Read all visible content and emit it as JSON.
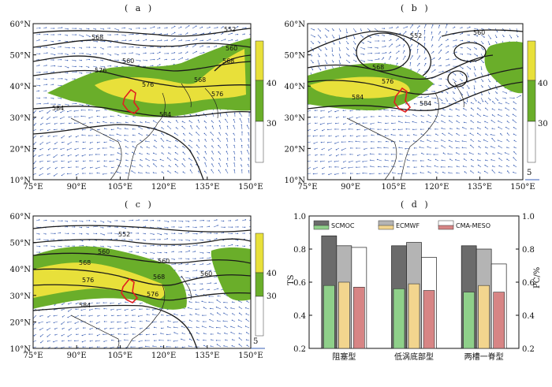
{
  "panels": {
    "a": {
      "label": "( a )",
      "contours": [
        "568",
        "560",
        "576",
        "576",
        "584",
        "568",
        "552",
        "568",
        "560",
        "576",
        "584"
      ],
      "legend_ticks": [
        "40",
        "30"
      ]
    },
    "b": {
      "label": "( b )",
      "contours": [
        "568",
        "576",
        "584",
        "552",
        "560",
        "584"
      ],
      "legend_ticks": [
        "40",
        "30"
      ],
      "vector_ref": "5"
    },
    "c": {
      "label": "( c )",
      "contours": [
        "552",
        "560",
        "568",
        "560",
        "576",
        "568",
        "576",
        "560",
        "584"
      ],
      "legend_ticks": [
        "40",
        "30"
      ],
      "vector_ref": "5"
    },
    "d": {
      "label": "( d )"
    }
  },
  "map_axes": {
    "x_ticks": [
      "75°E",
      "90°E",
      "105°E",
      "120°E",
      "135°E",
      "150°E"
    ],
    "y_ticks": [
      "60°N",
      "50°N",
      "40°N",
      "30°N",
      "20°N",
      "10°N"
    ]
  },
  "colors": {
    "green": "#6aae2a",
    "yellow": "#e8e03a",
    "contour": "#1a1a1a",
    "vector": "#3a5fb4",
    "boundary": "#e02020"
  },
  "chart_data": {
    "type": "bar",
    "title": "",
    "categories": [
      "阻塞型",
      "低涡底部型",
      "两槽一脊型"
    ],
    "ylabel": "TS",
    "y2label": "PC/%",
    "ylim": [
      0.2,
      1.0
    ],
    "yticks": [
      "0.2",
      "0.4",
      "0.6",
      "0.8",
      "1.0"
    ],
    "legend": [
      "SCMOC",
      "ECMWF",
      "CMA-MESO"
    ],
    "series_pc": [
      {
        "name": "SCMOC",
        "values": [
          0.88,
          0.82,
          0.82
        ],
        "color": "#6b6b6b"
      },
      {
        "name": "ECMWF",
        "values": [
          0.82,
          0.84,
          0.8
        ],
        "color": "#b4b4b4"
      },
      {
        "name": "CMA-MESO",
        "values": [
          0.81,
          0.75,
          0.71
        ],
        "color": "#ffffff"
      }
    ],
    "series_ts": [
      {
        "name": "SCMOC",
        "values": [
          0.58,
          0.56,
          0.54
        ],
        "color": "#8fd08a"
      },
      {
        "name": "ECMWF",
        "values": [
          0.6,
          0.59,
          0.58
        ],
        "color": "#f2d58e"
      },
      {
        "name": "CMA-MESO",
        "values": [
          0.57,
          0.55,
          0.54
        ],
        "color": "#d78585"
      }
    ]
  }
}
